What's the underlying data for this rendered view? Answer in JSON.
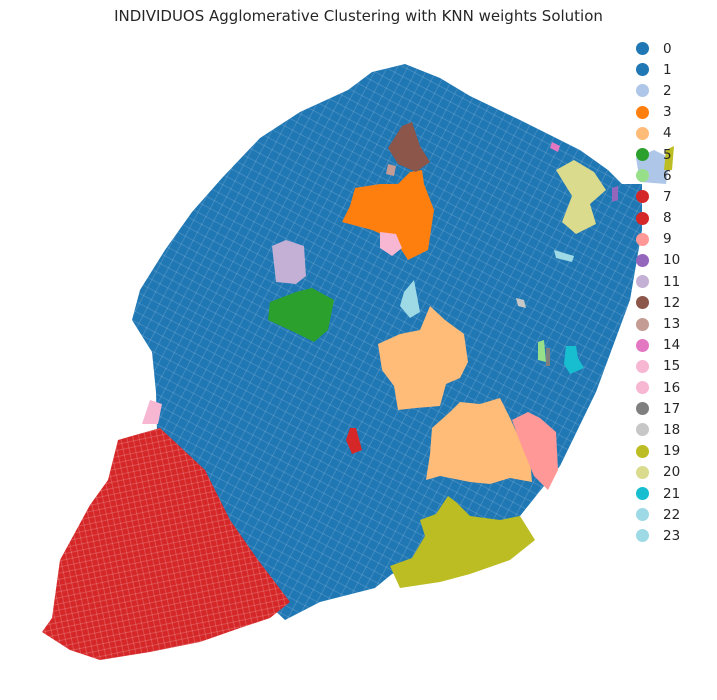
{
  "title": "INDIVIDUOS Agglomerative Clustering with KNN weights Solution",
  "legend": [
    {
      "label": "0",
      "color": "#1f77b4"
    },
    {
      "label": "1",
      "color": "#1f77b4"
    },
    {
      "label": "2",
      "color": "#aec7e8"
    },
    {
      "label": "3",
      "color": "#ff7f0e"
    },
    {
      "label": "4",
      "color": "#ffbb78"
    },
    {
      "label": "5",
      "color": "#2ca02c"
    },
    {
      "label": "6",
      "color": "#98df8a"
    },
    {
      "label": "7",
      "color": "#d62728"
    },
    {
      "label": "8",
      "color": "#d62728"
    },
    {
      "label": "9",
      "color": "#ff9896"
    },
    {
      "label": "10",
      "color": "#9467bd"
    },
    {
      "label": "11",
      "color": "#c5b0d5"
    },
    {
      "label": "12",
      "color": "#8c564b"
    },
    {
      "label": "13",
      "color": "#c49c94"
    },
    {
      "label": "14",
      "color": "#e377c2"
    },
    {
      "label": "15",
      "color": "#f7b6d2"
    },
    {
      "label": "16",
      "color": "#f7b6d2"
    },
    {
      "label": "17",
      "color": "#7f7f7f"
    },
    {
      "label": "18",
      "color": "#c7c7c7"
    },
    {
      "label": "19",
      "color": "#bcbd22"
    },
    {
      "label": "20",
      "color": "#dbdb8d"
    },
    {
      "label": "21",
      "color": "#17becf"
    },
    {
      "label": "22",
      "color": "#9edae5"
    },
    {
      "label": "23",
      "color": "#9edae5"
    }
  ]
}
